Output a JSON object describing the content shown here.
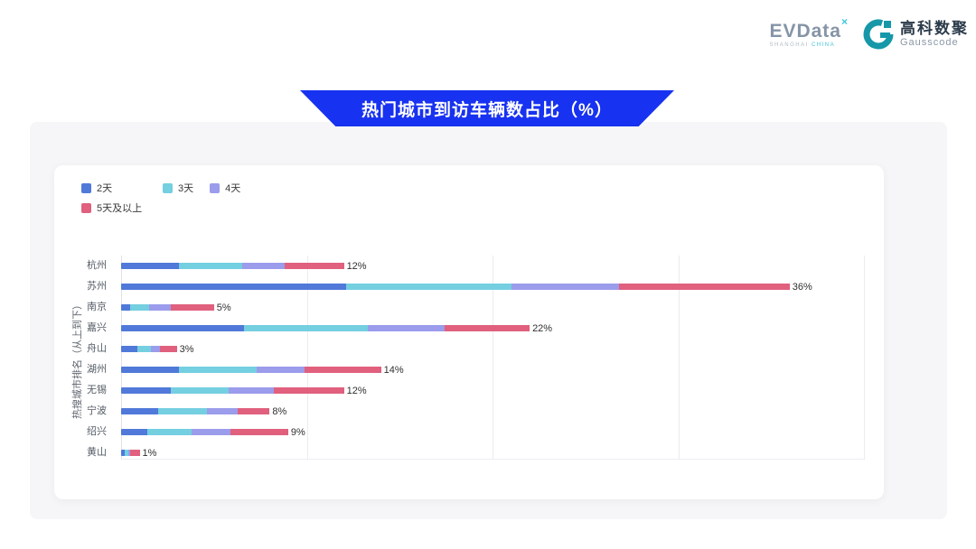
{
  "header": {
    "evdata_logo": {
      "word": "EVData",
      "superscript": "×",
      "sub_left": "SHANGHAI",
      "sub_right": "CHINA"
    },
    "gausscode_logo": {
      "cn": "高科数聚",
      "en": "Gausscode",
      "mark_color": "#1798a8"
    }
  },
  "banner": {
    "title": "热门城市到访车辆数占比（%）",
    "color": "#1732f0"
  },
  "chart_data": {
    "type": "bar",
    "orientation": "horizontal",
    "stacked": true,
    "title": "热门城市到访车辆数占比（%）",
    "xlabel": "",
    "ylabel": "热搜城市排名（从上到下）",
    "xlim": [
      0,
      40
    ],
    "grid": true,
    "gridline_ticks": [
      10,
      20,
      30,
      40
    ],
    "legend_position": "top-left",
    "categories": [
      "杭州",
      "苏州",
      "南京",
      "嘉兴",
      "舟山",
      "湖州",
      "无锡",
      "宁波",
      "绍兴",
      "黄山"
    ],
    "series": [
      {
        "name": "2天",
        "color": "#5079d9",
        "values": [
          3.1,
          12.1,
          0.5,
          6.6,
          0.9,
          3.1,
          2.7,
          2.0,
          1.4,
          0.2
        ]
      },
      {
        "name": "3天",
        "color": "#74cfe0",
        "values": [
          3.4,
          8.9,
          1.0,
          6.7,
          0.7,
          4.2,
          3.1,
          2.6,
          2.4,
          0.2
        ]
      },
      {
        "name": "4天",
        "color": "#9b9ceb",
        "values": [
          2.3,
          5.8,
          1.2,
          4.1,
          0.5,
          2.6,
          2.4,
          1.7,
          2.1,
          0.1
        ]
      },
      {
        "name": "5天及以上",
        "color": "#e0607e",
        "values": [
          3.2,
          9.2,
          2.3,
          4.6,
          0.9,
          4.1,
          3.8,
          1.7,
          3.1,
          0.5
        ]
      }
    ],
    "total_labels": [
      "12%",
      "36%",
      "5%",
      "22%",
      "3%",
      "14%",
      "12%",
      "8%",
      "9%",
      "1%"
    ]
  }
}
